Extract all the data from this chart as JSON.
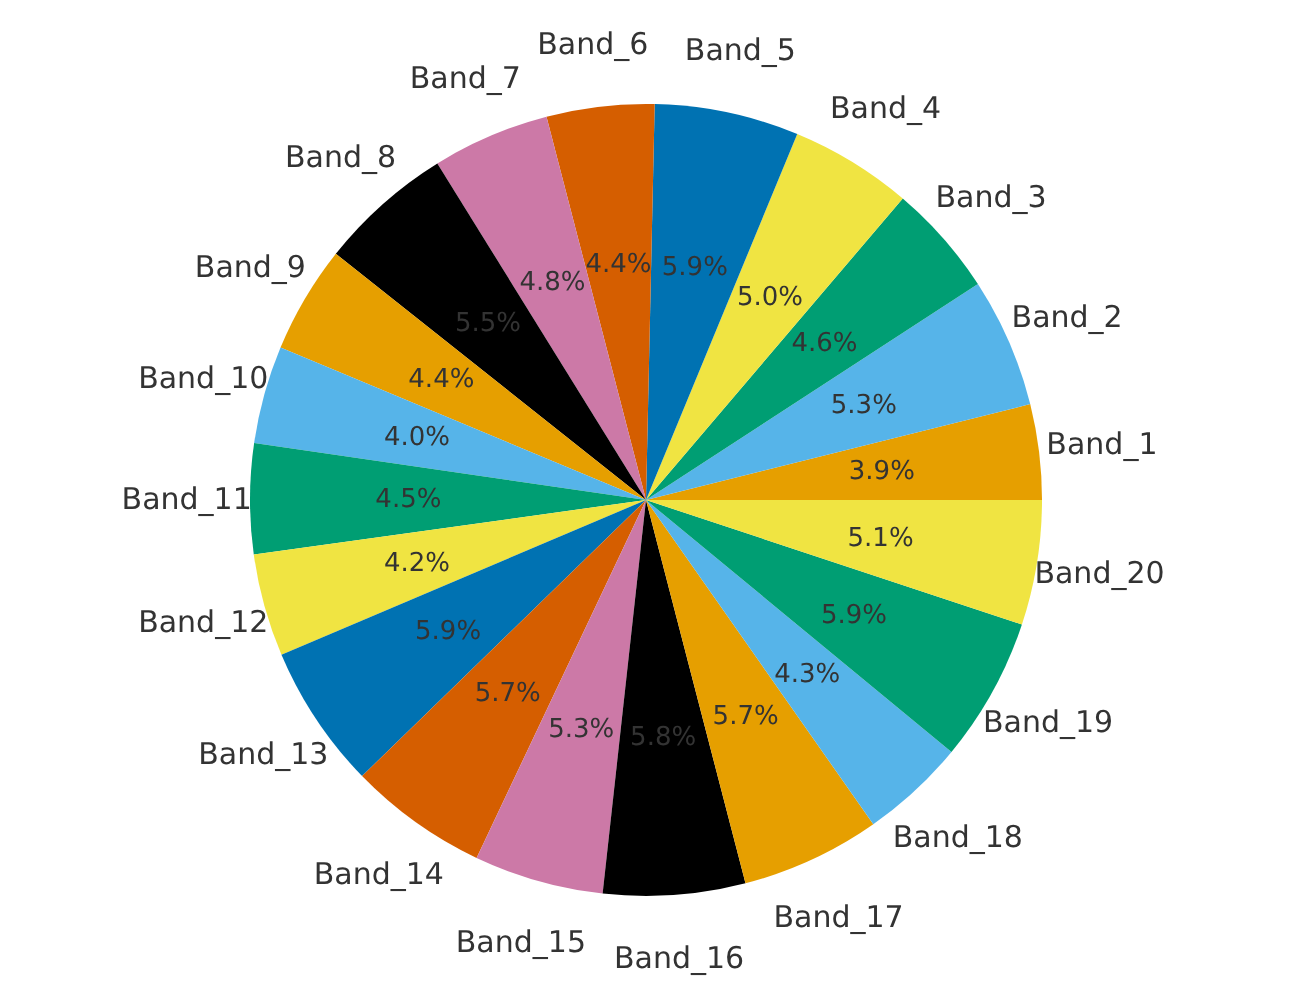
{
  "chart_data": {
    "type": "pie",
    "categories": [
      "Band_1",
      "Band_2",
      "Band_3",
      "Band_4",
      "Band_5",
      "Band_6",
      "Band_7",
      "Band_8",
      "Band_9",
      "Band_10",
      "Band_11",
      "Band_12",
      "Band_13",
      "Band_14",
      "Band_15",
      "Band_16",
      "Band_17",
      "Band_18",
      "Band_19",
      "Band_20"
    ],
    "values": [
      3.9,
      5.3,
      4.6,
      5.0,
      5.9,
      4.4,
      4.8,
      5.5,
      4.4,
      4.0,
      4.5,
      4.2,
      5.9,
      5.7,
      5.3,
      5.8,
      5.7,
      4.3,
      5.9,
      5.1
    ],
    "value_labels": [
      "3.9%",
      "5.3%",
      "4.6%",
      "5.0%",
      "5.9%",
      "4.4%",
      "4.8%",
      "5.5%",
      "4.4%",
      "4.0%",
      "4.5%",
      "4.2%",
      "5.9%",
      "5.7%",
      "5.3%",
      "5.8%",
      "5.7%",
      "4.3%",
      "5.9%",
      "5.1%"
    ],
    "colors": [
      "#e69f00",
      "#56b4e9",
      "#009e73",
      "#f0e442",
      "#0072b2",
      "#d55e00",
      "#cc79a7",
      "#000000",
      "#e69f00",
      "#56b4e9",
      "#009e73",
      "#f0e442",
      "#0072b2",
      "#d55e00",
      "#cc79a7",
      "#000000",
      "#e69f00",
      "#56b4e9",
      "#009e73",
      "#f0e442"
    ]
  }
}
